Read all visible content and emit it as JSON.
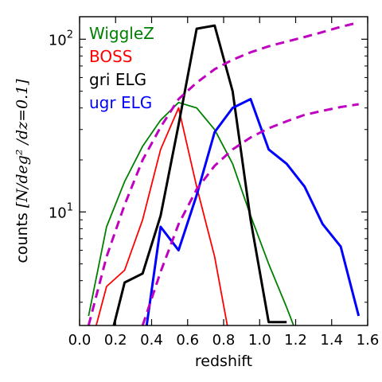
{
  "chart_data": {
    "type": "line",
    "xlabel": "redshift",
    "ylabel": {
      "text": "counts ",
      "math": "[N/deg² /dz=0.1]"
    },
    "xlim": [
      0.0,
      1.6
    ],
    "ylim": [
      2.2,
      135
    ],
    "yscale": "log",
    "grid": false,
    "legend_placement": "top-left",
    "x_ticks": [
      {
        "value": 0.0,
        "label": "0.0"
      },
      {
        "value": 0.2,
        "label": "0.2"
      },
      {
        "value": 0.4,
        "label": "0.4"
      },
      {
        "value": 0.6,
        "label": "0.6"
      },
      {
        "value": 0.8,
        "label": "0.8"
      },
      {
        "value": 1.0,
        "label": "1.0"
      },
      {
        "value": 1.2,
        "label": "1.2"
      },
      {
        "value": 1.4,
        "label": "1.4"
      },
      {
        "value": 1.6,
        "label": "1.6"
      }
    ],
    "y_ticks": [
      {
        "value": 10,
        "base": "10",
        "exp": "1"
      },
      {
        "value": 100,
        "base": "10",
        "exp": "2"
      }
    ],
    "series": [
      {
        "name": "WiggleZ",
        "color": "#008000",
        "style": "solid",
        "x": [
          0.05,
          0.15,
          0.25,
          0.35,
          0.45,
          0.55,
          0.65,
          0.75,
          0.85,
          0.95,
          1.05,
          1.15,
          1.25
        ],
        "y": [
          2.5,
          8.2,
          15,
          24,
          34,
          43,
          40,
          30,
          19,
          9.5,
          5,
          2.8,
          1.5
        ]
      },
      {
        "name": "BOSS",
        "color": "#ff0000",
        "style": "solid",
        "x": [
          0.05,
          0.15,
          0.25,
          0.35,
          0.45,
          0.55,
          0.65,
          0.75,
          0.85
        ],
        "y": [
          1.5,
          3.7,
          4.6,
          9,
          23,
          40,
          14,
          5.5,
          1.5
        ]
      },
      {
        "name": "gri ELG",
        "color": "#000000",
        "style": "solid",
        "x": [
          0.15,
          0.25,
          0.35,
          0.45,
          0.55,
          0.65,
          0.75,
          0.85,
          0.95,
          1.05,
          1.15
        ],
        "y": [
          1.5,
          3.9,
          4.4,
          9.5,
          32,
          115,
          120,
          50,
          9,
          2.3,
          2.3
        ]
      },
      {
        "name": "ugr ELG",
        "color": "#0000ff",
        "style": "solid",
        "x": [
          0.35,
          0.45,
          0.55,
          0.65,
          0.75,
          0.85,
          0.95,
          1.05,
          1.15,
          1.25,
          1.35,
          1.45,
          1.55
        ],
        "y": [
          1.5,
          8.2,
          6.0,
          12.5,
          29,
          40,
          45,
          23,
          19,
          14,
          8.5,
          6.3,
          2.5
        ]
      },
      {
        "name": "",
        "color": "#c000c0",
        "style": "dashed",
        "x": [
          0.05,
          0.15,
          0.25,
          0.35,
          0.45,
          0.55,
          0.65,
          0.75,
          0.85,
          0.95,
          1.05,
          1.15,
          1.25,
          1.35,
          1.45,
          1.55
        ],
        "y": [
          2.2,
          5.5,
          11,
          20,
          31,
          45,
          56,
          67,
          76,
          84,
          91,
          97,
          103,
          110,
          118,
          125
        ]
      },
      {
        "name": "",
        "color": "#c000c0",
        "style": "dashed",
        "x": [
          0.35,
          0.45,
          0.55,
          0.65,
          0.75,
          0.85,
          0.95,
          1.05,
          1.15,
          1.25,
          1.35,
          1.45,
          1.55
        ],
        "y": [
          2.2,
          4.5,
          8.5,
          13.5,
          18.5,
          23,
          27,
          30.5,
          33.5,
          36.5,
          38.5,
          40.5,
          42
        ]
      }
    ]
  }
}
